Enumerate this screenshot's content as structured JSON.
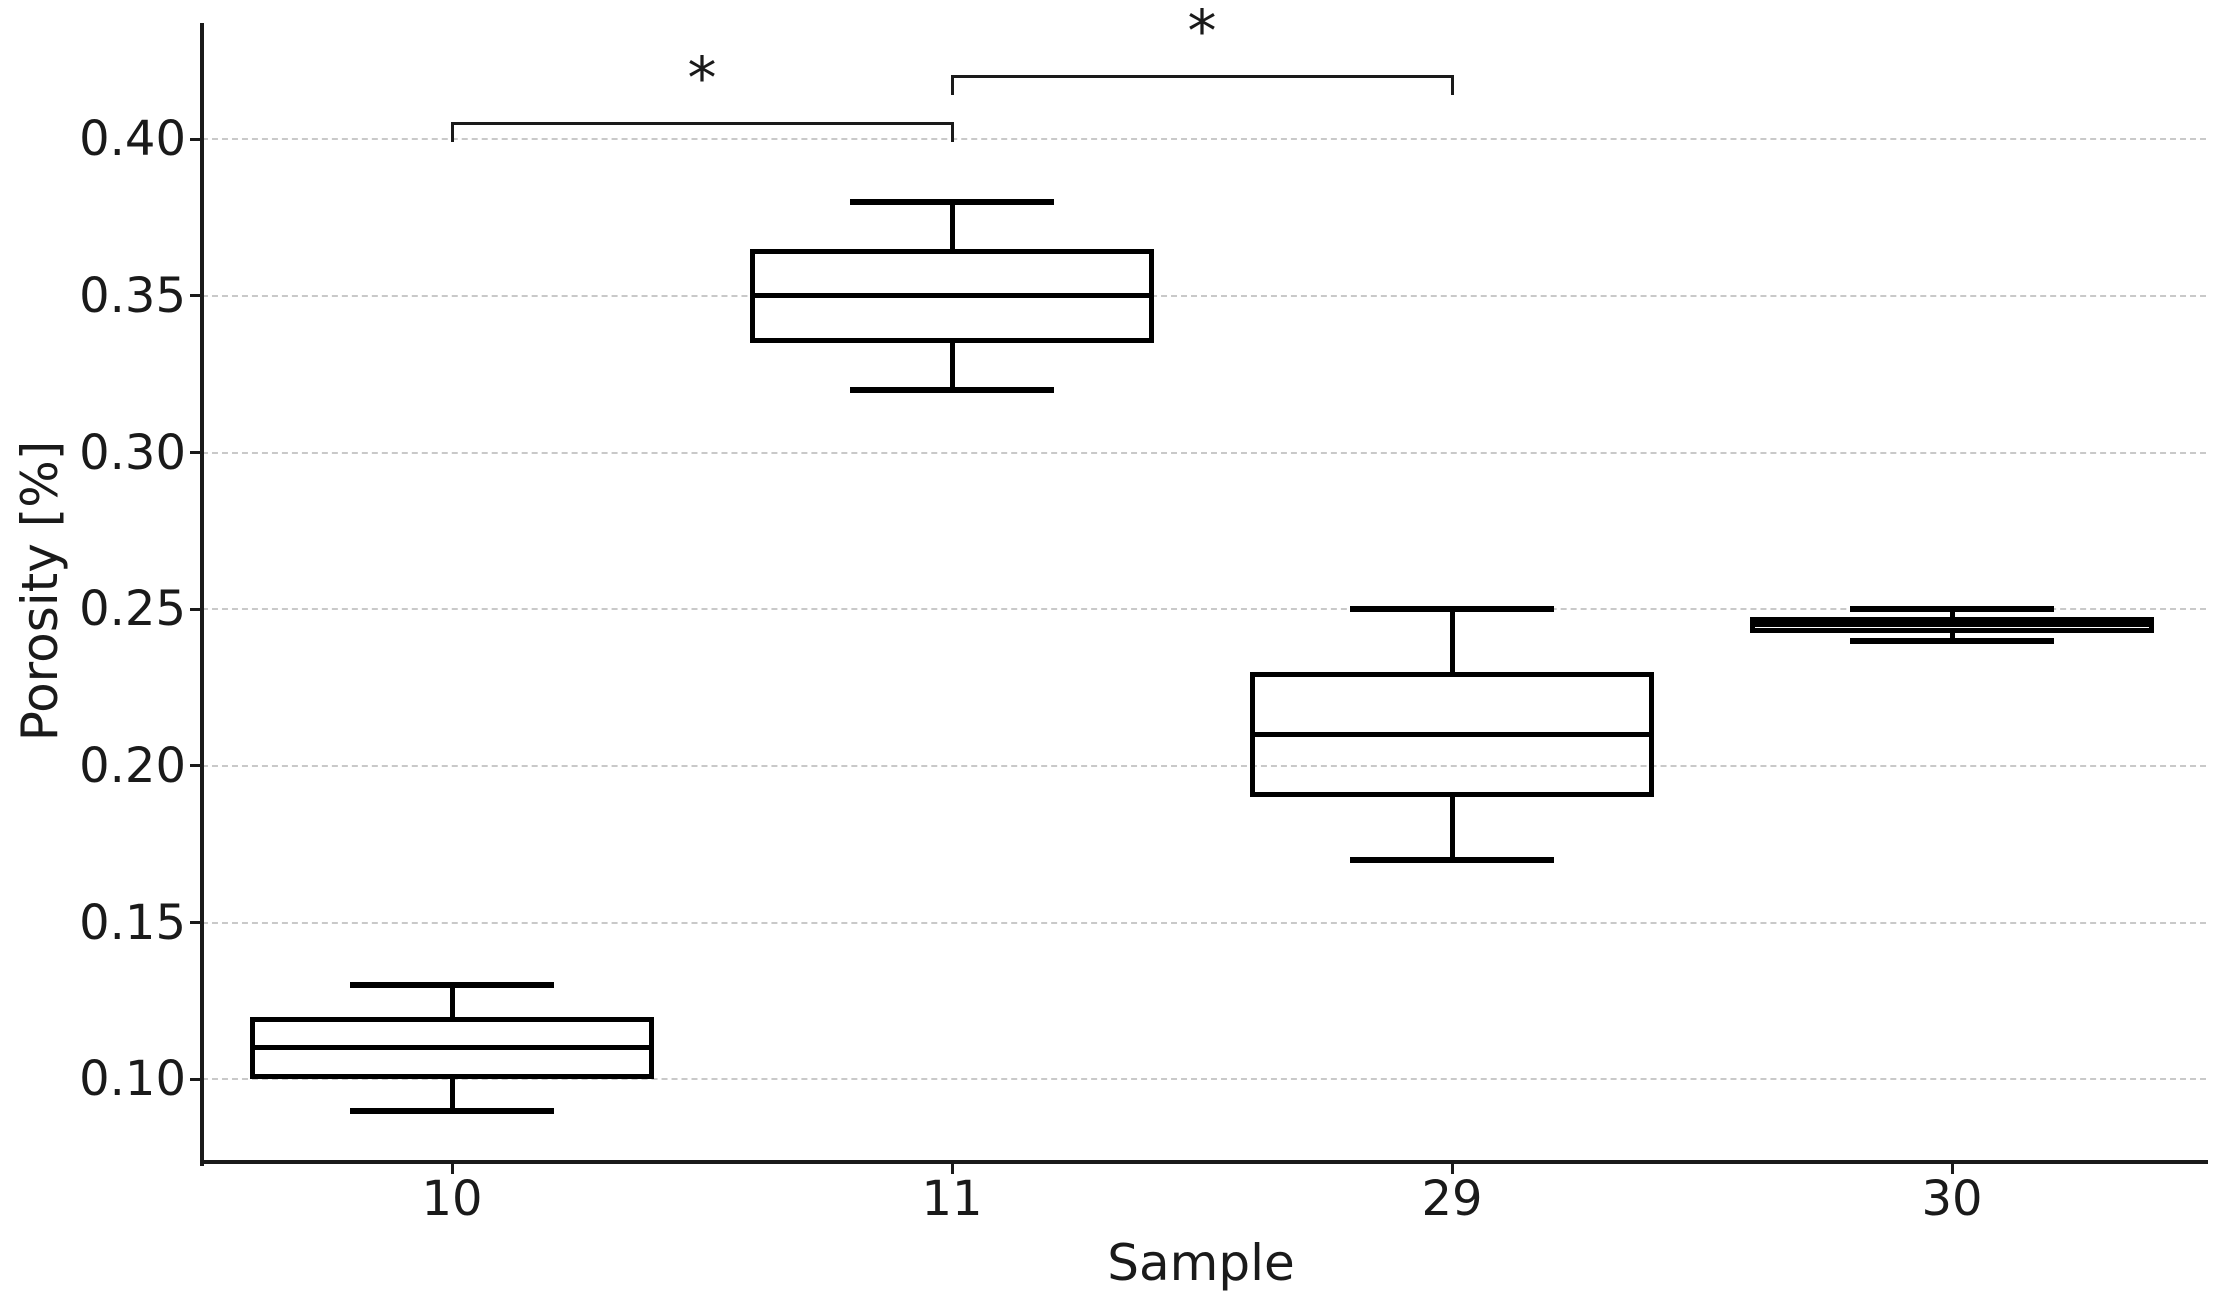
{
  "figure": {
    "background": "#ffffff"
  },
  "chart_data": {
    "type": "boxplot",
    "title": "",
    "xlabel": "Sample",
    "ylabel": "Porosity [%]",
    "categories": [
      "10",
      "11",
      "29",
      "30"
    ],
    "ytick_values": [
      0.1,
      0.15,
      0.2,
      0.25,
      0.3,
      0.35,
      0.4
    ],
    "ytick_labels": [
      "0.10",
      "0.15",
      "0.20",
      "0.25",
      "0.30",
      "0.35",
      "0.40"
    ],
    "ylim": [
      0.0736,
      0.4371
    ],
    "grid": {
      "axis": "y",
      "style": "dashed",
      "color": "#c9c9c9"
    },
    "legend": "none",
    "boxes": [
      {
        "category": "10",
        "whisker_low": 0.09,
        "q1": 0.1,
        "median": 0.11,
        "q3": 0.12,
        "whisker_high": 0.13
      },
      {
        "category": "11",
        "whisker_low": 0.32,
        "q1": 0.335,
        "median": 0.35,
        "q3": 0.365,
        "whisker_high": 0.38
      },
      {
        "category": "29",
        "whisker_low": 0.17,
        "q1": 0.19,
        "median": 0.21,
        "q3": 0.23,
        "whisker_high": 0.25
      },
      {
        "category": "30",
        "whisker_low": 0.24,
        "q1": 0.2425,
        "median": 0.245,
        "q3": 0.2475,
        "whisker_high": 0.25
      }
    ],
    "annotations": [
      {
        "type": "significance-bracket",
        "from": "10",
        "to": "11",
        "label": "*",
        "bar_y": 0.405,
        "tick_drop": 0.006
      },
      {
        "type": "significance-bracket",
        "from": "11",
        "to": "29",
        "label": "*",
        "bar_y": 0.42,
        "tick_drop": 0.006
      }
    ]
  },
  "colors": {
    "box_line": "#000000",
    "spine": "#1a1a1a",
    "tick": "#1a1a1a",
    "text": "#1a1a1a",
    "gridline": "#c9c9c9",
    "bracket": "#1a1a1a"
  }
}
